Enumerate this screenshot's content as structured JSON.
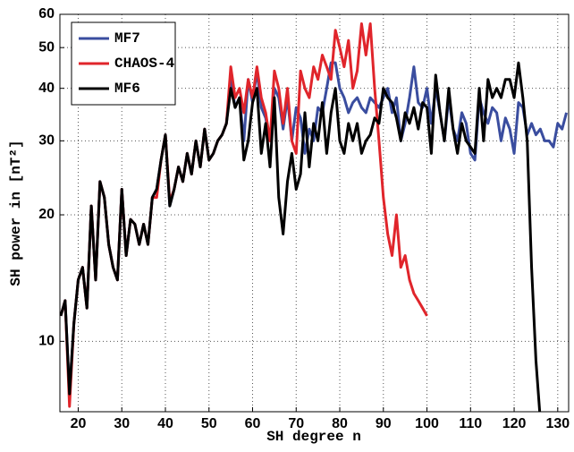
{
  "chart_data": {
    "type": "line",
    "x_label": "SH degree n",
    "y_label": "SH power in [nT²]",
    "yscale": "log",
    "grid": true,
    "legend": "upper left",
    "xlim": [
      15.8,
      132.5
    ],
    "ylim": [
      6.8,
      60
    ],
    "xticks": [
      20,
      30,
      40,
      50,
      60,
      70,
      80,
      90,
      100,
      110,
      120,
      130
    ],
    "yticks": [
      10,
      20,
      30,
      40,
      50,
      60
    ],
    "x": [
      16,
      17,
      18,
      19,
      20,
      21,
      22,
      23,
      24,
      25,
      26,
      27,
      28,
      29,
      30,
      31,
      32,
      33,
      34,
      35,
      36,
      37,
      38,
      39,
      40,
      41,
      42,
      43,
      44,
      45,
      46,
      47,
      48,
      49,
      50,
      51,
      52,
      53,
      54,
      55,
      56,
      57,
      58,
      59,
      60,
      61,
      62,
      63,
      64,
      65,
      66,
      67,
      68,
      69,
      70,
      71,
      72,
      73,
      74,
      75,
      76,
      77,
      78,
      79,
      80,
      81,
      82,
      83,
      84,
      85,
      86,
      87,
      88,
      89,
      90,
      91,
      92,
      93,
      94,
      95,
      96,
      97,
      98,
      99,
      100,
      101,
      102,
      103,
      104,
      105,
      106,
      107,
      108,
      109,
      110,
      111,
      112,
      113,
      114,
      115,
      116,
      117,
      118,
      119,
      120,
      121,
      122,
      123,
      124,
      125,
      126,
      127,
      128,
      129,
      130,
      131,
      132
    ],
    "series": [
      {
        "name": "MF7",
        "color": "#3a4d9f",
        "values": [
          11.5,
          12.5,
          7.5,
          11,
          14,
          15,
          12,
          21,
          14,
          24,
          22,
          17,
          15,
          14,
          23,
          16,
          19.5,
          19,
          17,
          19,
          17,
          22,
          23,
          27,
          31,
          21,
          23,
          26,
          24,
          28,
          25,
          30,
          26,
          32,
          27,
          28,
          30,
          31,
          33,
          42,
          36,
          38,
          30,
          42,
          37,
          44,
          36,
          34,
          30,
          40,
          38,
          32,
          38,
          30,
          36,
          34,
          28,
          32,
          30,
          36,
          35,
          40,
          46,
          46,
          40,
          38,
          35,
          37,
          38,
          36,
          35,
          38,
          37,
          36,
          38,
          40,
          35,
          38,
          30,
          33,
          38,
          45,
          37,
          36,
          40,
          33,
          40,
          35,
          30,
          38,
          32,
          30,
          35,
          33,
          28,
          27,
          38,
          35,
          33,
          36,
          35,
          30,
          34,
          32,
          28,
          37,
          36,
          31,
          33,
          31,
          32,
          30,
          30,
          29,
          33,
          32,
          35
        ]
      },
      {
        "name": "CHAOS-4",
        "color": "#e0252b",
        "values": [
          11.5,
          12.5,
          7,
          11,
          14,
          15,
          12,
          21,
          14,
          24,
          22,
          17,
          15,
          14,
          23,
          16,
          19.5,
          19,
          17,
          19,
          17,
          22,
          22,
          27,
          31,
          21.5,
          23,
          26,
          24,
          28,
          25,
          30,
          26,
          32,
          27,
          28,
          30,
          31,
          33,
          45,
          38,
          40,
          35,
          42,
          38,
          45,
          38,
          35,
          30,
          44,
          40,
          33,
          40,
          30,
          28,
          44,
          40,
          38,
          45,
          42,
          48,
          45,
          42,
          55,
          50,
          45,
          52,
          40,
          44,
          57,
          48,
          57,
          40,
          30,
          22,
          18,
          16,
          20,
          15,
          16,
          14,
          13,
          12.5,
          12,
          11.5,
          null,
          null,
          null,
          null,
          null,
          null,
          null,
          null,
          null,
          null,
          null,
          null,
          null,
          null,
          null,
          null,
          null,
          null,
          null,
          null,
          null,
          null,
          null,
          null,
          null,
          null,
          null,
          null,
          null,
          null,
          null,
          null
        ]
      },
      {
        "name": "MF6",
        "color": "#000000",
        "values": [
          11.5,
          12.5,
          7.5,
          11,
          14,
          15,
          12,
          21,
          14,
          24,
          22,
          17,
          15,
          14,
          23,
          16,
          19.5,
          19,
          17,
          19,
          17,
          22,
          23,
          27,
          31,
          21,
          23,
          26,
          24,
          28,
          25,
          30,
          26,
          32,
          27,
          28,
          30,
          31,
          33,
          40,
          36,
          38,
          27,
          30,
          37,
          40,
          28,
          33,
          26,
          38,
          22,
          18,
          24,
          28,
          23,
          25,
          35,
          26,
          33,
          30,
          37,
          28,
          35,
          40,
          30,
          28,
          33,
          30,
          33,
          28,
          30,
          31,
          34,
          33,
          40,
          38,
          37,
          34,
          30,
          35,
          33,
          36,
          32,
          37,
          36,
          28,
          43,
          35,
          30,
          40,
          32,
          28,
          33,
          30,
          29,
          28,
          40,
          30,
          42,
          38,
          40,
          38,
          42,
          42,
          38,
          46,
          38,
          30,
          15,
          9,
          6.5,
          null,
          null,
          null,
          null,
          null,
          null
        ]
      }
    ]
  }
}
